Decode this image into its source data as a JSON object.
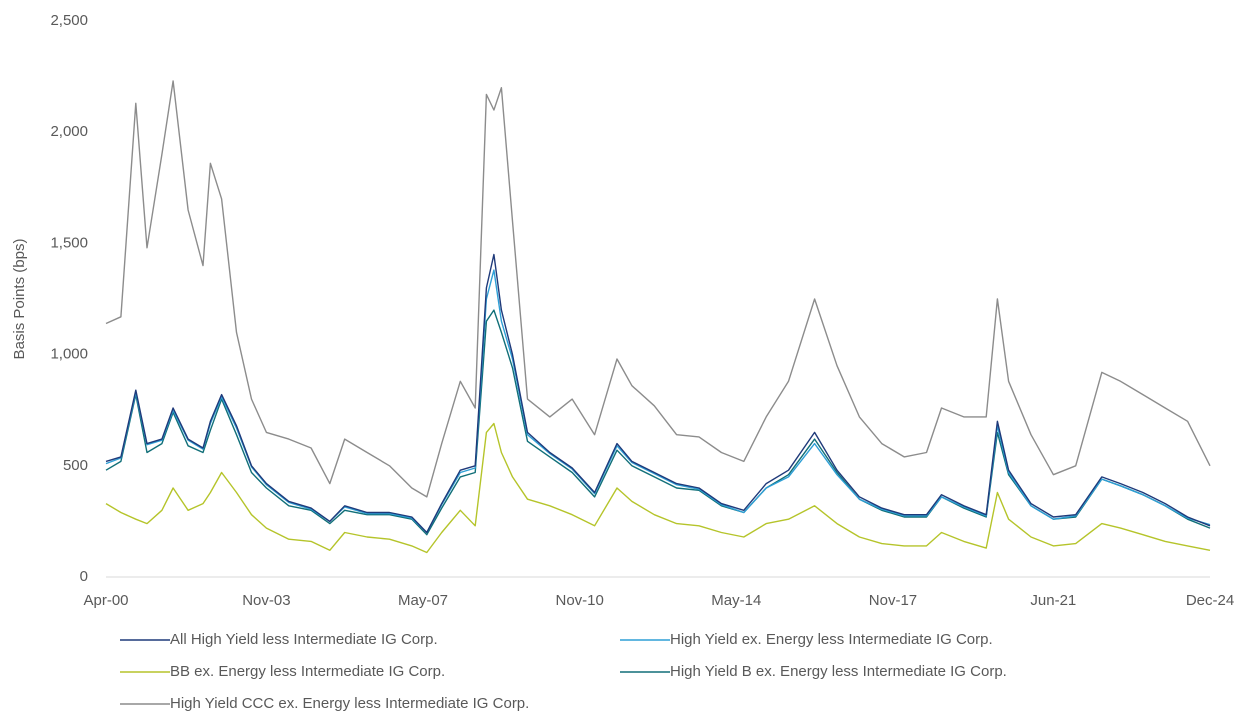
{
  "chart_data": {
    "type": "line",
    "y_label": "Basis Points (bps)",
    "x": [
      "Apr-00",
      "Aug-00",
      "Dec-00",
      "Mar-01",
      "Jul-01",
      "Oct-01",
      "Feb-02",
      "Jun-02",
      "Aug-02",
      "Nov-02",
      "Mar-03",
      "Jul-03",
      "Nov-03",
      "May-04",
      "Nov-04",
      "Apr-05",
      "Aug-05",
      "Feb-06",
      "Aug-06",
      "Feb-07",
      "Jun-07",
      "Oct-07",
      "Mar-08",
      "Jul-08",
      "Oct-08",
      "Dec-08",
      "Feb-09",
      "May-09",
      "Sep-09",
      "Mar-10",
      "Sep-10",
      "Mar-11",
      "Sep-11",
      "Jan-12",
      "Jul-12",
      "Jan-13",
      "Jul-13",
      "Jan-14",
      "Jul-14",
      "Jan-15",
      "Jul-15",
      "Feb-16",
      "Aug-16",
      "Feb-17",
      "Aug-17",
      "Feb-18",
      "Aug-18",
      "Dec-18",
      "Jun-19",
      "Dec-19",
      "Mar-20",
      "Jun-20",
      "Dec-20",
      "Jun-21",
      "Dec-21",
      "Jul-22",
      "Dec-22",
      "Jun-23",
      "Dec-23",
      "Jun-24",
      "Dec-24"
    ],
    "xlim": [
      "Apr-00",
      "Dec-24"
    ],
    "xticks": [
      "Apr-00",
      "Nov-03",
      "May-07",
      "Nov-10",
      "May-14",
      "Nov-17",
      "Jun-21",
      "Dec-24"
    ],
    "ylim": [
      0,
      2500
    ],
    "yticks": [
      0,
      500,
      {
        "value": 1000,
        "label": "1,000"
      },
      {
        "value": 1500,
        "label": "1,500"
      },
      {
        "value": 2000,
        "label": "2,000"
      },
      {
        "value": 2500,
        "label": "2,500"
      }
    ],
    "series": [
      {
        "name": "All High Yield less Intermediate IG Corp.",
        "color": "#1f3a7a",
        "values": [
          520,
          540,
          840,
          600,
          620,
          760,
          620,
          580,
          700,
          820,
          680,
          500,
          420,
          340,
          310,
          250,
          320,
          290,
          290,
          270,
          200,
          330,
          480,
          500,
          1300,
          1450,
          1200,
          1000,
          650,
          560,
          490,
          380,
          600,
          520,
          470,
          420,
          400,
          330,
          300,
          420,
          480,
          650,
          480,
          360,
          310,
          280,
          280,
          370,
          320,
          280,
          700,
          480,
          330,
          270,
          280,
          450,
          420,
          380,
          330,
          270,
          230
        ]
      },
      {
        "name": "High Yield ex. Energy less Intermediate IG Corp.",
        "color": "#2e9fd6",
        "values": [
          510,
          535,
          830,
          595,
          615,
          750,
          615,
          575,
          690,
          810,
          670,
          495,
          415,
          335,
          305,
          250,
          315,
          285,
          285,
          265,
          200,
          325,
          470,
          490,
          1250,
          1380,
          1150,
          980,
          640,
          555,
          485,
          375,
          590,
          515,
          465,
          415,
          395,
          325,
          290,
          400,
          450,
          600,
          460,
          350,
          305,
          275,
          275,
          360,
          315,
          275,
          680,
          470,
          320,
          260,
          275,
          440,
          410,
          370,
          320,
          265,
          235
        ]
      },
      {
        "name": "BB ex. Energy less Intermediate IG Corp.",
        "color": "#b5c42a",
        "values": [
          330,
          290,
          260,
          240,
          300,
          400,
          300,
          330,
          380,
          470,
          380,
          280,
          220,
          170,
          160,
          120,
          200,
          180,
          170,
          140,
          110,
          200,
          300,
          230,
          650,
          690,
          560,
          450,
          350,
          320,
          280,
          230,
          400,
          340,
          280,
          240,
          230,
          200,
          180,
          240,
          260,
          320,
          240,
          180,
          150,
          140,
          140,
          200,
          160,
          130,
          380,
          260,
          180,
          140,
          150,
          240,
          220,
          190,
          160,
          140,
          120
        ]
      },
      {
        "name": "High Yield B ex. Energy less Intermediate IG Corp.",
        "color": "#116f78",
        "values": [
          480,
          520,
          820,
          560,
          600,
          740,
          590,
          560,
          660,
          800,
          640,
          470,
          400,
          320,
          300,
          240,
          300,
          280,
          280,
          260,
          190,
          310,
          450,
          470,
          1150,
          1200,
          1100,
          940,
          610,
          540,
          470,
          360,
          570,
          500,
          450,
          400,
          390,
          320,
          290,
          400,
          460,
          620,
          470,
          350,
          300,
          270,
          270,
          360,
          310,
          270,
          650,
          460,
          320,
          260,
          270,
          440,
          410,
          370,
          320,
          260,
          220
        ]
      },
      {
        "name": "High Yield CCC ex. Energy less Intermediate IG Corp.",
        "color": "#8c8c8c",
        "values": [
          1140,
          1170,
          2130,
          1480,
          1900,
          2230,
          1650,
          1400,
          1860,
          1700,
          1100,
          800,
          650,
          620,
          580,
          420,
          620,
          560,
          500,
          400,
          360,
          600,
          880,
          760,
          2170,
          2100,
          2200,
          1600,
          800,
          720,
          800,
          640,
          980,
          860,
          770,
          640,
          630,
          560,
          520,
          720,
          880,
          1250,
          950,
          720,
          600,
          540,
          560,
          760,
          720,
          720,
          1250,
          880,
          640,
          460,
          500,
          920,
          880,
          820,
          760,
          700,
          500
        ]
      }
    ]
  }
}
